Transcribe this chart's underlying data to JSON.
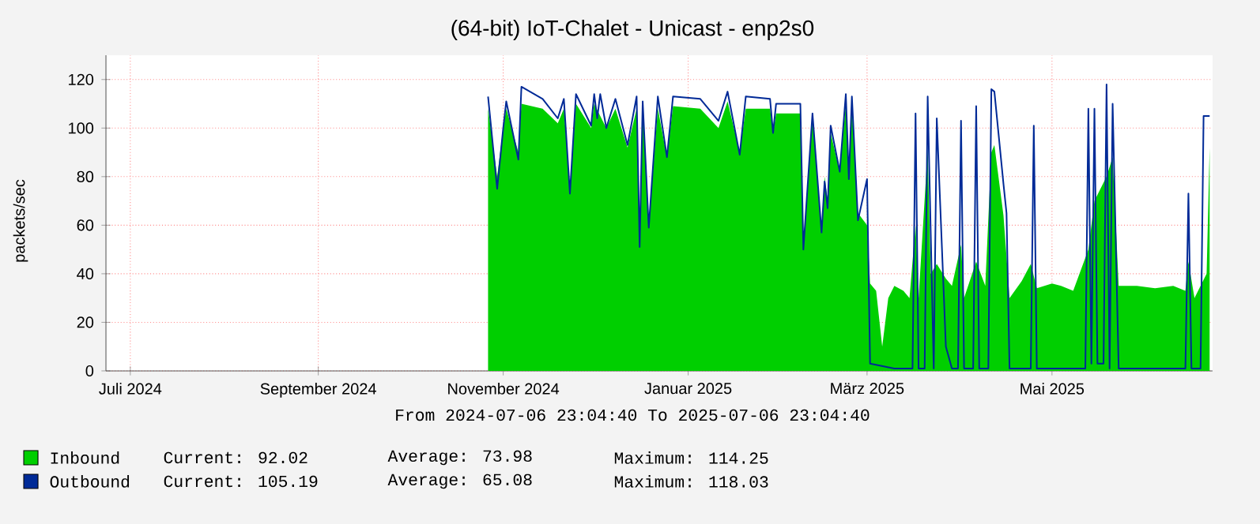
{
  "chart_data": {
    "type": "line",
    "title": "(64-bit)  IoT-Chalet - Unicast - enp2s0",
    "ylabel": "packets/sec",
    "xlim": [
      "2024-07-06T23:04",
      "2025-07-06T23:04"
    ],
    "xticks": [
      {
        "value": "2024-07-15",
        "label": "Juli 2024"
      },
      {
        "value": "2024-09-15",
        "label": "September 2024"
      },
      {
        "value": "2024-11-15",
        "label": "November 2024"
      },
      {
        "value": "2025-01-15",
        "label": "Januar 2025"
      },
      {
        "value": "2025-03-15",
        "label": "März 2025"
      },
      {
        "value": "2025-05-15",
        "label": "Mai 2025"
      }
    ],
    "ylim": [
      0,
      130
    ],
    "yticks": [
      0,
      20,
      40,
      60,
      80,
      100,
      120
    ],
    "grid": true,
    "legend": "bottom left",
    "series": [
      {
        "name": "Inbound",
        "type": "area",
        "color": "#00cf00",
        "x": [
          "2024-11-10",
          "2024-11-13",
          "2024-11-15",
          "2024-11-16",
          "2024-11-20",
          "2024-11-21",
          "2024-11-28",
          "2024-12-03",
          "2024-12-05",
          "2024-12-07",
          "2024-12-09",
          "2024-12-14",
          "2024-12-15",
          "2024-12-19",
          "2024-12-22",
          "2024-12-26",
          "2024-12-29",
          "2024-12-30",
          "2024-12-31",
          "2025-01-02",
          "2025-01-05",
          "2025-01-08",
          "2025-01-10",
          "2025-01-19",
          "2025-01-25",
          "2025-01-28",
          "2025-02-01",
          "2025-02-03",
          "2025-02-11",
          "2025-02-12",
          "2025-02-13",
          "2025-02-21",
          "2025-02-22",
          "2025-02-25",
          "2025-02-28",
          "2025-03-01",
          "2025-03-02",
          "2025-03-03",
          "2025-03-06",
          "2025-03-08",
          "2025-03-09",
          "2025-03-10",
          "2025-03-12",
          "2025-03-15",
          "2025-03-16",
          "2025-03-18",
          "2025-03-20",
          "2025-03-22",
          "2025-03-24",
          "2025-03-27",
          "2025-03-29",
          "2025-03-31",
          "2025-04-01",
          "2025-04-04",
          "2025-04-05",
          "2025-04-07",
          "2025-04-10",
          "2025-04-12",
          "2025-04-15",
          "2025-04-16",
          "2025-04-20",
          "2025-04-23",
          "2025-04-25",
          "2025-04-26",
          "2025-04-29",
          "2025-05-01",
          "2025-05-05",
          "2025-05-08",
          "2025-05-10",
          "2025-05-15",
          "2025-05-18",
          "2025-05-22",
          "2025-05-27",
          "2025-05-29",
          "2025-06-02",
          "2025-06-04",
          "2025-06-06",
          "2025-06-12",
          "2025-06-18",
          "2025-06-24",
          "2025-06-28",
          "2025-06-29",
          "2025-07-01",
          "2025-07-03",
          "2025-07-05",
          "2025-07-06"
        ],
        "values": [
          108,
          80,
          100,
          108,
          90,
          110,
          108,
          102,
          108,
          75,
          110,
          100,
          110,
          100,
          108,
          92,
          108,
          55,
          108,
          60,
          108,
          88,
          109,
          108,
          100,
          111,
          90,
          108,
          108,
          98,
          106,
          106,
          52,
          104,
          58,
          80,
          70,
          98,
          82,
          110,
          80,
          108,
          65,
          60,
          36,
          33,
          10,
          30,
          35,
          33,
          30,
          60,
          30,
          91,
          40,
          44,
          38,
          35,
          52,
          30,
          45,
          35,
          90,
          93,
          64,
          30,
          37,
          44,
          34,
          36,
          35,
          33,
          50,
          70,
          80,
          88,
          35,
          35,
          34,
          35,
          33,
          45,
          30,
          35,
          40,
          92
        ]
      },
      {
        "name": "Outbound",
        "color": "#002a97",
        "x": [
          "2024-11-10",
          "2024-11-13",
          "2024-11-15",
          "2024-11-16",
          "2024-11-20",
          "2024-11-21",
          "2024-11-28",
          "2024-12-03",
          "2024-12-05",
          "2024-12-07",
          "2024-12-09",
          "2024-12-14",
          "2024-12-15",
          "2024-12-16",
          "2024-12-17",
          "2024-12-19",
          "2024-12-22",
          "2024-12-26",
          "2024-12-29",
          "2024-12-30",
          "2024-12-31",
          "2025-01-02",
          "2025-01-05",
          "2025-01-08",
          "2025-01-10",
          "2025-01-19",
          "2025-01-25",
          "2025-01-28",
          "2025-02-01",
          "2025-02-03",
          "2025-02-11",
          "2025-02-12",
          "2025-02-13",
          "2025-02-21",
          "2025-02-22",
          "2025-02-25",
          "2025-02-28",
          "2025-03-01",
          "2025-03-02",
          "2025-03-03",
          "2025-03-06",
          "2025-03-08",
          "2025-03-09",
          "2025-03-10",
          "2025-03-12",
          "2025-03-15",
          "2025-03-16",
          "2025-03-24",
          "2025-03-30",
          "2025-03-31",
          "2025-04-01",
          "2025-04-03",
          "2025-04-04",
          "2025-04-06",
          "2025-04-07",
          "2025-04-10",
          "2025-04-12",
          "2025-04-14",
          "2025-04-15",
          "2025-04-16",
          "2025-04-19",
          "2025-04-20",
          "2025-04-21",
          "2025-04-24",
          "2025-04-25",
          "2025-04-26",
          "2025-04-29",
          "2025-04-30",
          "2025-05-01",
          "2025-05-08",
          "2025-05-09",
          "2025-05-10",
          "2025-05-26",
          "2025-05-27",
          "2025-05-28",
          "2025-05-29",
          "2025-05-30",
          "2025-06-01",
          "2025-06-02",
          "2025-06-03",
          "2025-06-04",
          "2025-06-06",
          "2025-06-28",
          "2025-06-29",
          "2025-06-30",
          "2025-07-03",
          "2025-07-04",
          "2025-07-06"
        ],
        "values": [
          113,
          75,
          100,
          111,
          87,
          117,
          112,
          104,
          112,
          73,
          114,
          101,
          114,
          104,
          114,
          100,
          112,
          93,
          113,
          51,
          111,
          59,
          113,
          88,
          113,
          112,
          103,
          115,
          89,
          113,
          112,
          98,
          110,
          110,
          50,
          106,
          57,
          78,
          67,
          101,
          82,
          114,
          79,
          113,
          62,
          79,
          3,
          1,
          1,
          106,
          1,
          1,
          113,
          1,
          104,
          10,
          1,
          1,
          103,
          1,
          1,
          109,
          1,
          1,
          116,
          115,
          77,
          65,
          1,
          1,
          101,
          1,
          1,
          108,
          3,
          108,
          3,
          3,
          118,
          1,
          110,
          1,
          1,
          73,
          1,
          1,
          105,
          105
        ]
      }
    ],
    "annotations": [
      "From 2024-07-06 23:04:40 To 2025-07-06 23:04:40",
      "Current: 92.02",
      "Average: 73.98",
      "Maximum: 114.25",
      "Current: 105.19",
      "Average: 65.08",
      "Maximum: 118.03"
    ]
  }
}
